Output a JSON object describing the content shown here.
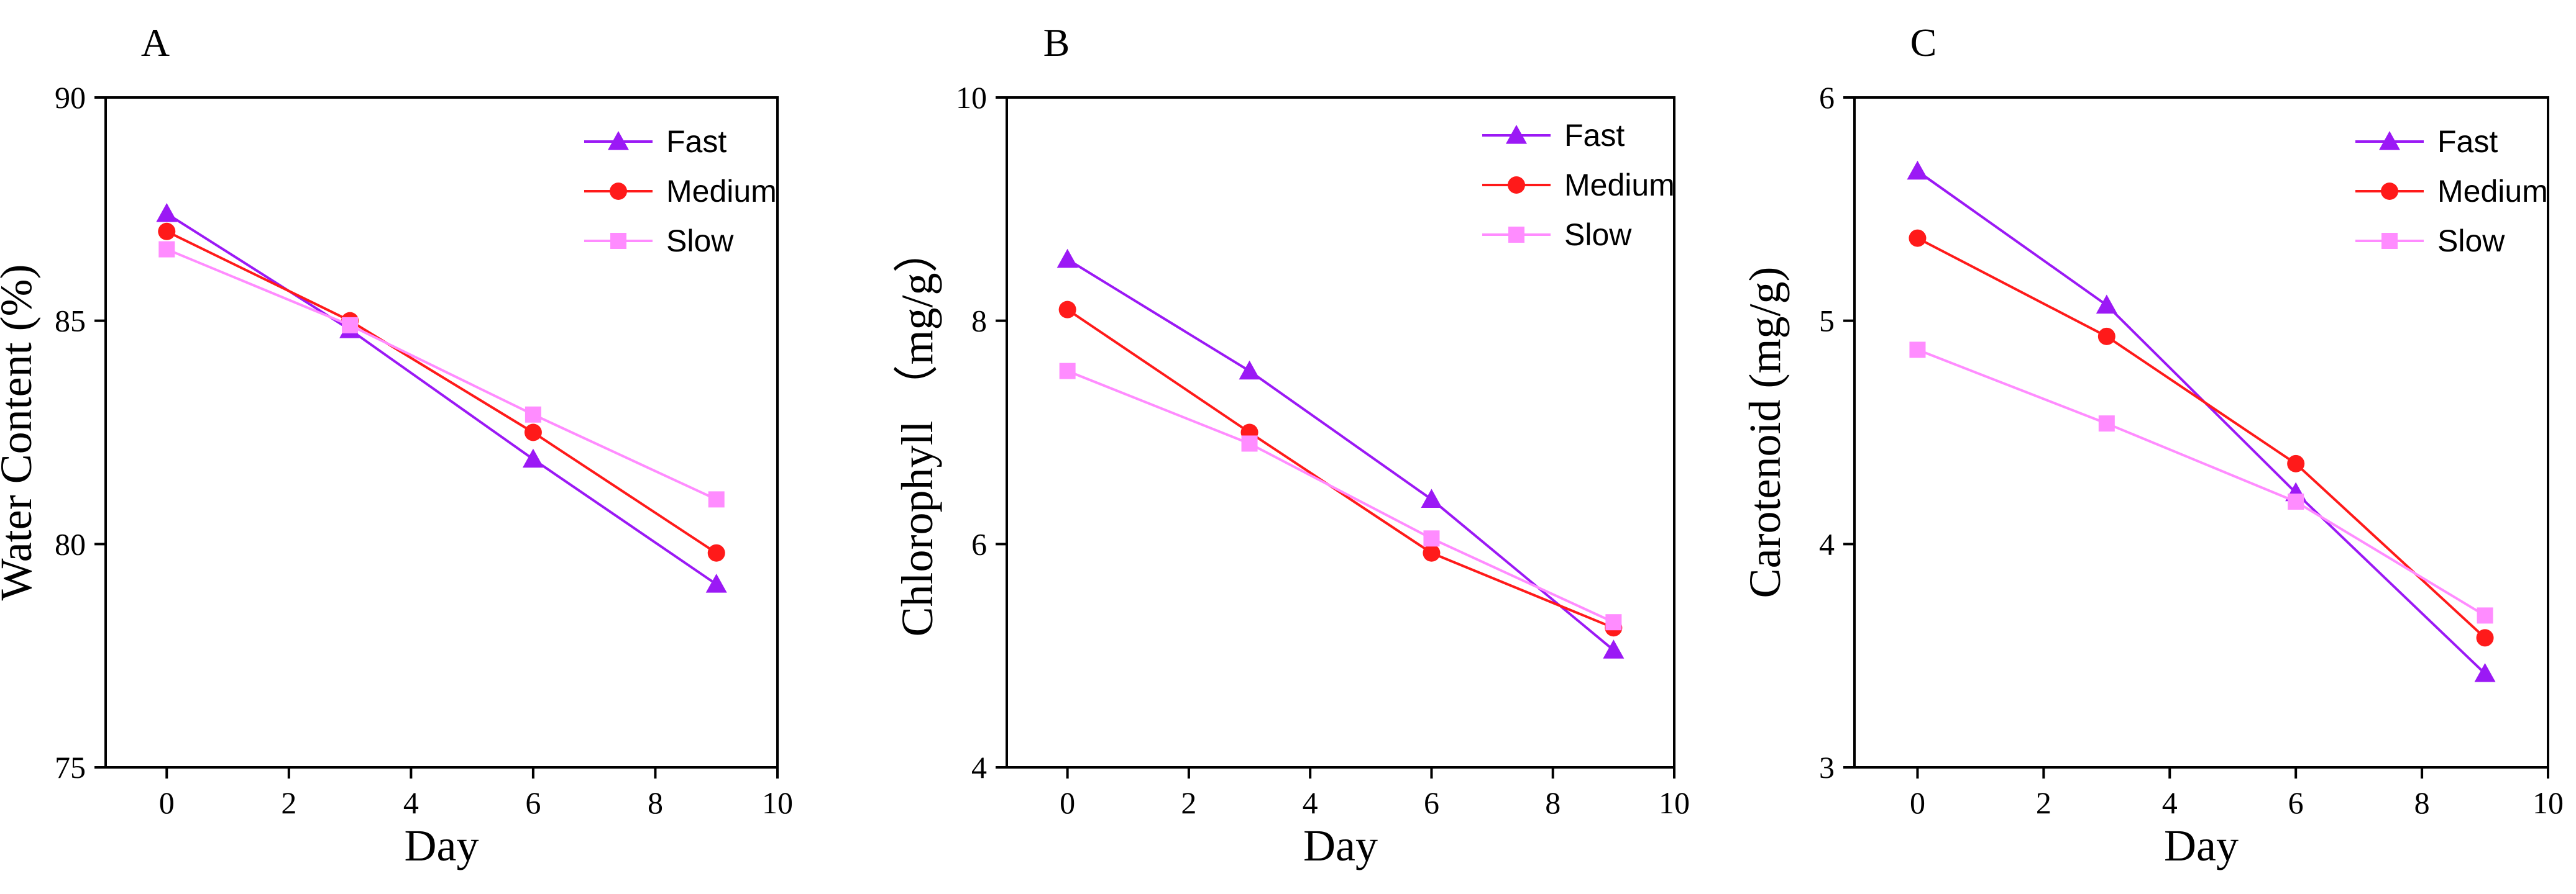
{
  "series_colors": {
    "Fast": "#9b19f5",
    "Medium": "#ff1a1a",
    "Slow": "#ff8cff"
  },
  "series_markers": {
    "Fast": "triangle",
    "Medium": "circle",
    "Slow": "square"
  },
  "chart_data": [
    {
      "type": "line",
      "panel_label": "A",
      "title": "",
      "xlabel": "Day",
      "ylabel": "Water Content (%)",
      "xlim": [
        -1,
        10
      ],
      "ylim": [
        75,
        90
      ],
      "xticks": [
        0,
        2,
        4,
        6,
        8,
        10
      ],
      "yticks": [
        75,
        80,
        85,
        90
      ],
      "x": [
        0,
        3,
        6,
        9
      ],
      "series": [
        {
          "name": "Fast",
          "values": [
            87.4,
            84.8,
            81.9,
            79.1
          ]
        },
        {
          "name": "Medium",
          "values": [
            87.0,
            85.0,
            82.5,
            79.8
          ]
        },
        {
          "name": "Slow",
          "values": [
            86.6,
            84.9,
            82.9,
            81.0
          ]
        }
      ],
      "legend": "top-right"
    },
    {
      "type": "line",
      "panel_label": "B",
      "title": "",
      "xlabel": "Day",
      "ylabel": "Chlorophyll （mg/g）",
      "xlim": [
        -1,
        10
      ],
      "ylim": [
        4,
        10
      ],
      "xticks": [
        0,
        2,
        4,
        6,
        8,
        10
      ],
      "yticks": [
        4,
        6,
        8,
        10
      ],
      "x": [
        0,
        3,
        6,
        9
      ],
      "series": [
        {
          "name": "Fast",
          "values": [
            8.55,
            7.55,
            6.4,
            5.05
          ]
        },
        {
          "name": "Medium",
          "values": [
            8.1,
            7.0,
            5.92,
            5.25
          ]
        },
        {
          "name": "Slow",
          "values": [
            7.55,
            6.9,
            6.05,
            5.3
          ]
        }
      ],
      "legend": "top-right"
    },
    {
      "type": "line",
      "panel_label": "C",
      "title": "",
      "xlabel": "Day",
      "ylabel": "Carotenoid (mg/g)",
      "xlim": [
        -1,
        10
      ],
      "ylim": [
        3,
        6
      ],
      "xticks": [
        0,
        2,
        4,
        6,
        8,
        10
      ],
      "yticks": [
        3,
        4,
        5,
        6
      ],
      "x": [
        0,
        3,
        6,
        9
      ],
      "series": [
        {
          "name": "Fast",
          "values": [
            5.67,
            5.07,
            4.23,
            3.42
          ]
        },
        {
          "name": "Medium",
          "values": [
            5.37,
            4.93,
            4.36,
            3.58
          ]
        },
        {
          "name": "Slow",
          "values": [
            4.87,
            4.54,
            4.19,
            3.68
          ]
        }
      ],
      "legend": "top-right"
    }
  ]
}
